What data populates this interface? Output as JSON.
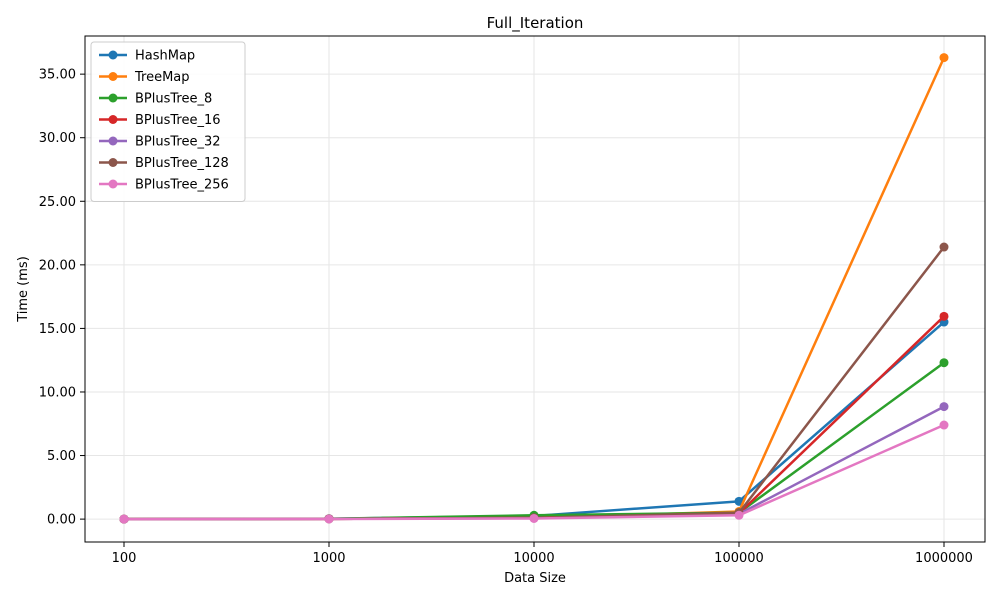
{
  "chart_data": {
    "type": "line",
    "title": "Full_Iteration",
    "xlabel": "Data Size",
    "ylabel": "Time (ms)",
    "categories": [
      "100",
      "1000",
      "10000",
      "100000",
      "1000000"
    ],
    "ylim": [
      -1.8,
      38.0
    ],
    "yticks": [
      "0.00",
      "5.00",
      "10.00",
      "15.00",
      "20.00",
      "25.00",
      "30.00",
      "35.00"
    ],
    "ytick_values": [
      0,
      5,
      10,
      15,
      20,
      25,
      30,
      35
    ],
    "grid": true,
    "legend_position": "top-left",
    "series": [
      {
        "name": "HashMap",
        "color": "#1f77b4",
        "values": [
          0.0,
          0.03,
          0.25,
          1.4,
          15.5
        ]
      },
      {
        "name": "TreeMap",
        "color": "#ff7f0e",
        "values": [
          0.0,
          0.02,
          0.1,
          0.6,
          36.3
        ]
      },
      {
        "name": "BPlusTree_8",
        "color": "#2ca02c",
        "values": [
          0.0,
          0.03,
          0.3,
          0.5,
          12.3
        ]
      },
      {
        "name": "BPlusTree_16",
        "color": "#d62728",
        "values": [
          0.0,
          0.02,
          0.1,
          0.45,
          15.95
        ]
      },
      {
        "name": "BPlusTree_32",
        "color": "#9467bd",
        "values": [
          0.0,
          0.02,
          0.08,
          0.4,
          8.85
        ]
      },
      {
        "name": "BPlusTree_128",
        "color": "#8c564b",
        "values": [
          0.0,
          0.02,
          0.1,
          0.5,
          21.4
        ]
      },
      {
        "name": "BPlusTree_256",
        "color": "#e377c2",
        "values": [
          0.0,
          0.01,
          0.05,
          0.3,
          7.4
        ]
      }
    ]
  }
}
